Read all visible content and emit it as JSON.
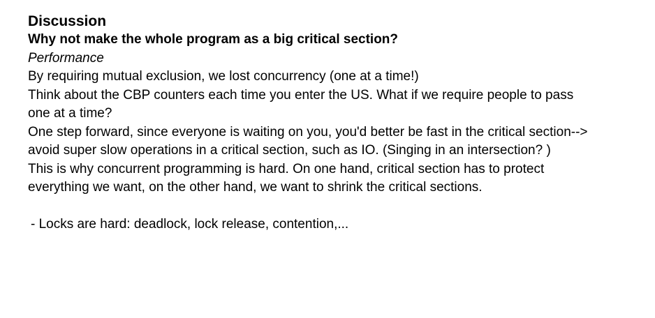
{
  "doc": {
    "heading": "Discussion",
    "question": "Why not make the whole program as a big critical section?",
    "answer_label": "Performance",
    "lines": [
      "By requiring mutual exclusion, we lost concurrency (one at a time!)",
      "Think about the CBP counters each time you enter the US. What if we require people to pass",
      "one at a time?",
      "One step forward, since everyone is waiting on you, you'd better be fast in the critical section-->",
      "avoid super slow operations in a critical section, such as IO. (Singing in an intersection? )",
      "This is why concurrent programming is hard. On one hand, critical section has to protect",
      "everything we want, on the other hand, we want to shrink the critical sections."
    ],
    "bullet": "- Locks are hard: deadlock, lock release, contention,..."
  }
}
